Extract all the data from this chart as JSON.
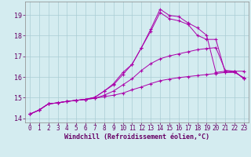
{
  "bg_color": "#d4ecf0",
  "grid_color": "#aacdd4",
  "line_color": "#aa00aa",
  "marker": "+",
  "xlabel": "Windchill (Refroidissement éolien,°C)",
  "xlabel_fontsize": 6.0,
  "xtick_fontsize": 5.5,
  "ytick_fontsize": 6.0,
  "xlabel_color": "#660066",
  "tick_color": "#660066",
  "xlim": [
    -0.5,
    23.5
  ],
  "ylim": [
    13.8,
    19.65
  ],
  "yticks": [
    14,
    15,
    16,
    17,
    18,
    19
  ],
  "xticks": [
    0,
    1,
    2,
    3,
    4,
    5,
    6,
    7,
    8,
    9,
    10,
    11,
    12,
    13,
    14,
    15,
    16,
    17,
    18,
    19,
    20,
    21,
    22,
    23
  ],
  "curves": [
    [
      14.2,
      14.4,
      14.7,
      14.75,
      14.82,
      14.87,
      14.92,
      14.97,
      15.05,
      15.12,
      15.22,
      15.38,
      15.52,
      15.68,
      15.82,
      15.9,
      15.97,
      16.02,
      16.07,
      16.12,
      16.17,
      16.22,
      16.27,
      15.92
    ],
    [
      14.2,
      14.4,
      14.7,
      14.75,
      14.82,
      14.87,
      14.92,
      14.97,
      15.12,
      15.32,
      15.62,
      15.92,
      16.32,
      16.65,
      16.88,
      17.02,
      17.12,
      17.22,
      17.32,
      17.38,
      17.42,
      16.32,
      16.28,
      16.28
    ],
    [
      14.2,
      14.4,
      14.7,
      14.75,
      14.82,
      14.87,
      14.92,
      15.02,
      15.32,
      15.62,
      16.12,
      16.62,
      17.42,
      18.22,
      19.12,
      18.82,
      18.72,
      18.55,
      18.02,
      17.82,
      17.82,
      16.22,
      16.22,
      15.97
    ],
    [
      14.2,
      14.4,
      14.7,
      14.75,
      14.82,
      14.87,
      14.92,
      15.02,
      15.32,
      15.68,
      16.22,
      16.62,
      17.42,
      18.32,
      19.28,
      18.98,
      18.92,
      18.62,
      18.38,
      18.02,
      16.22,
      16.28,
      16.28,
      15.92
    ]
  ]
}
